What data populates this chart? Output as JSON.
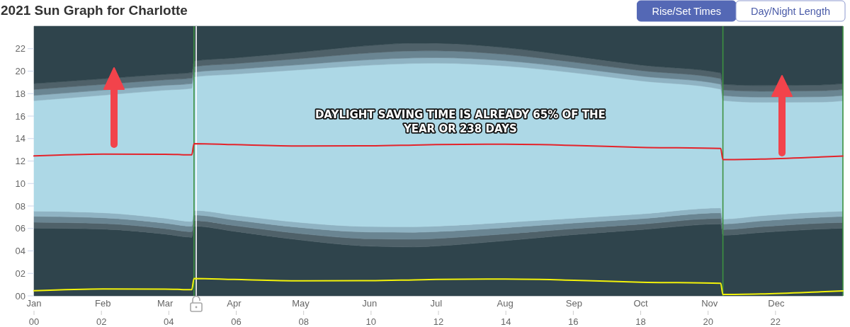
{
  "chart_data": {
    "type": "area",
    "title": "2021 Sun Graph for Charlotte",
    "annotations": [
      "DAYLIGHT SAVING TIME IS ALREADY 65% OF THE YEAR OR 238 DAYS",
      "Rise/Set Times",
      "Day/Night Length"
    ],
    "x": [
      "2021-01-01",
      "2021-02-01",
      "2021-03-01",
      "2021-03-13",
      "2021-03-14",
      "2021-04-01",
      "2021-05-01",
      "2021-06-01",
      "2021-06-21",
      "2021-07-01",
      "2021-08-01",
      "2021-09-01",
      "2021-10-01",
      "2021-11-06",
      "2021-11-07",
      "2021-11-24",
      "2021-12-21",
      "2021-12-31"
    ],
    "xlim": [
      "2021-01-01",
      "2021-12-31"
    ],
    "xticks": [
      {
        "value": "2021-01-01",
        "label": "Jan"
      },
      {
        "value": "2021-02-01",
        "label": "Feb"
      },
      {
        "value": "2021-03-01",
        "label": "Mar"
      },
      {
        "value": "2021-04-01",
        "label": "Apr"
      },
      {
        "value": "2021-05-01",
        "label": "May"
      },
      {
        "value": "2021-06-01",
        "label": "Jun"
      },
      {
        "value": "2021-07-01",
        "label": "Jul"
      },
      {
        "value": "2021-08-01",
        "label": "Aug"
      },
      {
        "value": "2021-09-01",
        "label": "Sep"
      },
      {
        "value": "2021-10-01",
        "label": "Oct"
      },
      {
        "value": "2021-11-01",
        "label": "Nov"
      },
      {
        "value": "2021-12-01",
        "label": "Dec"
      }
    ],
    "x2lim": [
      0,
      24
    ],
    "x2ticks": [
      {
        "value": 0,
        "label": "00"
      },
      {
        "value": 2,
        "label": "02"
      },
      {
        "value": 4,
        "label": "04"
      },
      {
        "value": 6,
        "label": "06"
      },
      {
        "value": 8,
        "label": "08"
      },
      10,
      12,
      14,
      16,
      18,
      20,
      22
    ],
    "ylim": [
      0,
      24
    ],
    "yticks": [
      {
        "value": 0,
        "label": "00"
      },
      {
        "value": 2,
        "label": "02"
      },
      {
        "value": 4,
        "label": "04"
      },
      {
        "value": 6,
        "label": "06"
      },
      {
        "value": 8,
        "label": "08"
      },
      10,
      12,
      14,
      16,
      18,
      20,
      22
    ],
    "stacked": true,
    "series": [
      {
        "color": "#2f444c",
        "values": [
          6.03,
          5.94,
          5.5,
          5.22,
          6.2,
          5.75,
          4.97,
          4.42,
          4.35,
          4.44,
          4.91,
          5.45,
          5.89,
          6.39,
          5.4,
          5.64,
          5.95,
          6.02
        ]
      },
      {
        "color": "#4f6169",
        "values": [
          0.52,
          0.5,
          0.49,
          0.49,
          0.5,
          0.51,
          0.57,
          0.66,
          0.69,
          0.67,
          0.6,
          0.53,
          0.49,
          0.5,
          0.5,
          0.51,
          0.52,
          0.52
        ]
      },
      {
        "color": "#6a8592",
        "values": [
          0.53,
          0.51,
          0.49,
          0.49,
          0.49,
          0.5,
          0.54,
          0.6,
          0.62,
          0.61,
          0.56,
          0.51,
          0.49,
          0.5,
          0.5,
          0.52,
          0.53,
          0.53
        ]
      },
      {
        "color": "#8fb3c3",
        "values": [
          0.47,
          0.45,
          0.43,
          0.42,
          0.42,
          0.43,
          0.45,
          0.49,
          0.49,
          0.49,
          0.47,
          0.43,
          0.42,
          0.44,
          0.44,
          0.46,
          0.47,
          0.47
        ]
      },
      {
        "color": "#add8e6",
        "values": [
          9.82,
          10.46,
          11.4,
          11.85,
          11.88,
          12.54,
          13.6,
          14.36,
          14.54,
          14.5,
          13.92,
          12.94,
          11.85,
          10.57,
          10.55,
          10.1,
          9.78,
          9.82
        ]
      },
      {
        "color": "#8fb3c3",
        "values": [
          0.47,
          0.45,
          0.43,
          0.42,
          0.42,
          0.43,
          0.45,
          0.49,
          0.49,
          0.49,
          0.47,
          0.43,
          0.42,
          0.44,
          0.44,
          0.46,
          0.47,
          0.47
        ]
      },
      {
        "color": "#6a8592",
        "values": [
          0.53,
          0.51,
          0.49,
          0.49,
          0.49,
          0.5,
          0.54,
          0.6,
          0.62,
          0.61,
          0.56,
          0.51,
          0.49,
          0.5,
          0.5,
          0.52,
          0.53,
          0.53
        ]
      },
      {
        "color": "#4f6169",
        "values": [
          0.52,
          0.5,
          0.49,
          0.49,
          0.5,
          0.51,
          0.57,
          0.66,
          0.69,
          0.67,
          0.6,
          0.53,
          0.49,
          0.5,
          0.5,
          0.51,
          0.52,
          0.52
        ]
      },
      {
        "color": "#2f444c",
        "values": [
          5.11,
          4.68,
          4.28,
          4.13,
          3.1,
          2.83,
          2.31,
          1.72,
          1.51,
          1.52,
          1.91,
          2.67,
          3.46,
          4.16,
          5.17,
          5.28,
          5.23,
          5.12
        ]
      },
      {
        "type": "line",
        "color": "#e4232b",
        "values": [
          12.45,
          12.62,
          12.6,
          12.55,
          13.55,
          13.46,
          13.34,
          13.35,
          13.42,
          13.46,
          13.5,
          13.39,
          13.22,
          13.12,
          12.12,
          12.17,
          12.36,
          12.44
        ]
      },
      {
        "type": "line",
        "color": "#f2f20a",
        "values": [
          0.45,
          0.62,
          0.6,
          0.55,
          1.55,
          1.46,
          1.34,
          1.35,
          1.42,
          1.46,
          1.5,
          1.39,
          1.22,
          1.12,
          0.12,
          0.17,
          0.36,
          0.44
        ]
      }
    ],
    "ref_lines": [
      {
        "axis": "x",
        "value": "2021-03-14",
        "color": "#3d9140"
      },
      {
        "axis": "x",
        "value": "2021-11-07",
        "color": "#3d9140"
      },
      {
        "axis": "x",
        "value": "2021-12-31",
        "color": "#3d9140"
      },
      {
        "axis": "x",
        "value": "2021-03-15",
        "color": "#ffffff"
      }
    ]
  }
}
